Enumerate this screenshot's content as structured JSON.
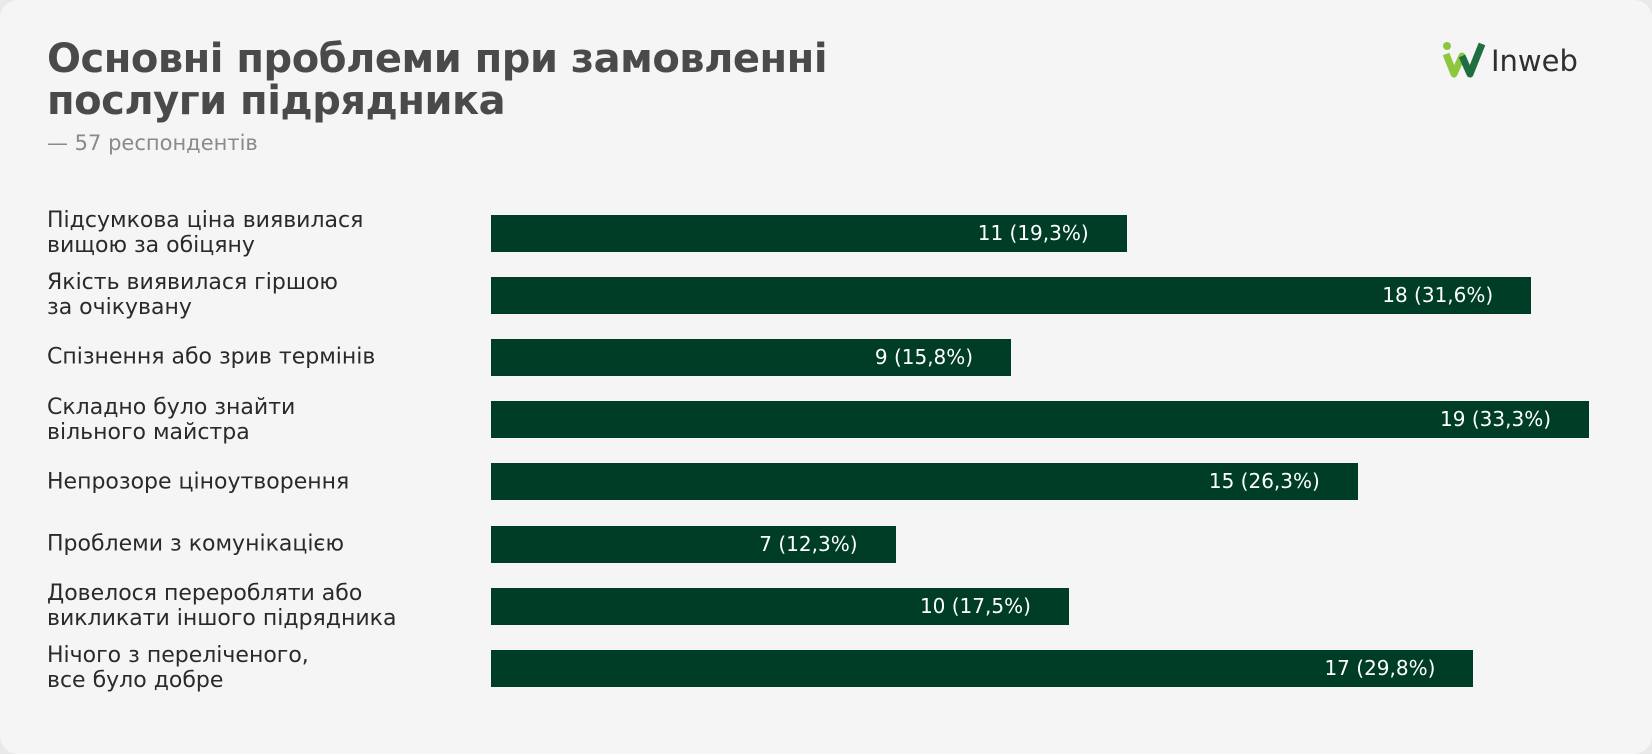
{
  "logo": "Inweb",
  "chart_data": {
    "type": "barh",
    "title": "Основні проблеми при замовленні послуги підрядника",
    "subtitle": "— 57 респондентів",
    "categories": [
      "Підсумкова ціна виявилася\nвищою за обіцяну",
      "Якість виявилася гіршою\nза очікувану",
      "Спізнення або зрив термінів",
      "Складно було знайти\nвільного майстра",
      "Непрозоре ціноутворення",
      "Проблеми з комунікацією",
      "Довелося переробляти або\nвикликати іншого підрядника",
      "Нічого з переліченого,\nвсе було добре"
    ],
    "values": [
      11,
      18,
      9,
      19,
      15,
      7,
      10,
      17
    ],
    "value_labels": [
      "11 (19,3%)",
      "18 (31,6%)",
      "9 (15,8%)",
      "19 (33,3%)",
      "15 (26,3%)",
      "7 (12,3%)",
      "10 (17,5%)",
      "17 (29,8%)"
    ],
    "color": "#003d27"
  }
}
